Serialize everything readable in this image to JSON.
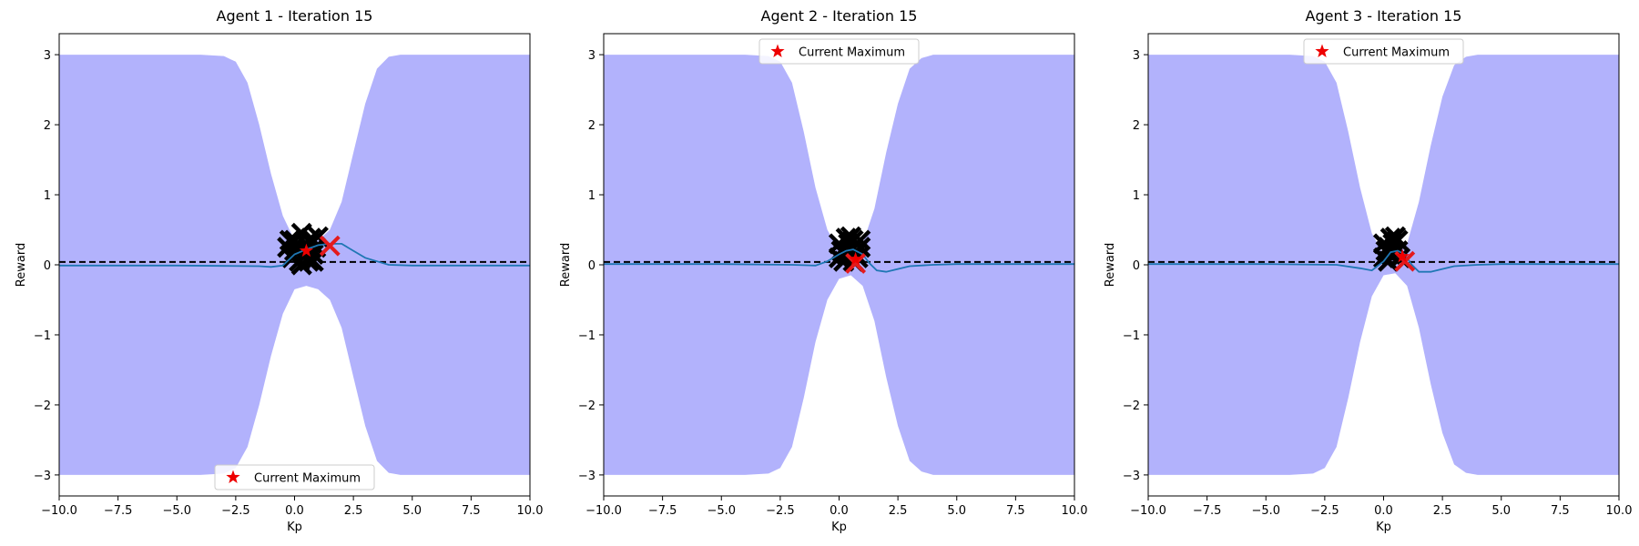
{
  "chart_data": [
    {
      "type": "line",
      "title": "Agent 1 - Iteration 15",
      "xlabel": "Kp",
      "ylabel": "Reward",
      "xlim": [
        -10,
        10
      ],
      "ylim": [
        -3.3,
        3.3
      ],
      "xticks": [
        "−10.0",
        "−7.5",
        "−5.0",
        "−2.5",
        "0.0",
        "2.5",
        "5.0",
        "7.5",
        "10.0"
      ],
      "yticks": [
        "−3",
        "−2",
        "−1",
        "0",
        "1",
        "2",
        "3"
      ],
      "grid": false,
      "legend": {
        "location": "lower center",
        "entries": [
          "Current Maximum"
        ]
      },
      "threshold": 0.04,
      "mean": {
        "x": [
          -10,
          -5,
          -3,
          -1.5,
          -1,
          -0.5,
          0,
          0.5,
          1,
          1.5,
          2,
          2.5,
          3,
          3.5,
          4,
          5,
          10
        ],
        "y": [
          -0.01,
          -0.01,
          -0.015,
          -0.02,
          -0.03,
          -0.01,
          0.15,
          0.22,
          0.28,
          0.3,
          0.3,
          0.2,
          0.1,
          0.05,
          0.0,
          -0.01,
          -0.01
        ]
      },
      "band": {
        "x": [
          -10,
          -4,
          -3,
          -2.5,
          -2,
          -1.5,
          -1,
          -0.5,
          0,
          0.5,
          1,
          1.5,
          2,
          2.5,
          3,
          3.5,
          4,
          4.5,
          5,
          10
        ],
        "upper": [
          3.0,
          3.0,
          2.98,
          2.9,
          2.6,
          2.0,
          1.3,
          0.7,
          0.35,
          0.3,
          0.35,
          0.5,
          0.9,
          1.6,
          2.3,
          2.8,
          2.97,
          3.0,
          3.0,
          3.0
        ],
        "lower": [
          -3.0,
          -3.0,
          -2.98,
          -2.9,
          -2.6,
          -2.0,
          -1.3,
          -0.7,
          -0.35,
          -0.3,
          -0.35,
          -0.5,
          -0.9,
          -1.6,
          -2.3,
          -2.8,
          -2.97,
          -3.0,
          -3.0,
          -3.0
        ]
      },
      "observations": {
        "x": [
          -0.3,
          0.0,
          0.2,
          0.5,
          0.8,
          1.0,
          -0.1,
          0.3,
          0.6,
          0.9,
          0.1,
          0.4,
          0.7,
          -0.2,
          0.5,
          0.3,
          0.0,
          0.8
        ],
        "y": [
          0.25,
          0.35,
          0.05,
          0.3,
          0.15,
          0.4,
          0.1,
          0.45,
          0.05,
          0.25,
          0.3,
          0.15,
          0.38,
          0.35,
          0.2,
          0.0,
          0.2,
          0.05
        ]
      },
      "latest": {
        "x": 1.5,
        "y": 0.27
      },
      "current_max": {
        "x": 0.5,
        "y": 0.2
      }
    },
    {
      "type": "line",
      "title": "Agent 2 - Iteration 15",
      "xlabel": "Kp",
      "ylabel": "Reward",
      "xlim": [
        -10,
        10
      ],
      "ylim": [
        -3.3,
        3.3
      ],
      "xticks": [
        "−10.0",
        "−7.5",
        "−5.0",
        "−2.5",
        "0.0",
        "2.5",
        "5.0",
        "7.5",
        "10.0"
      ],
      "yticks": [
        "−3",
        "−2",
        "−1",
        "0",
        "1",
        "2",
        "3"
      ],
      "grid": false,
      "legend": {
        "location": "upper center",
        "entries": [
          "Current Maximum"
        ]
      },
      "threshold": 0.04,
      "mean": {
        "x": [
          -10,
          -5,
          -2,
          -1,
          -0.5,
          0,
          0.3,
          0.6,
          1.0,
          1.3,
          1.6,
          2.0,
          2.5,
          3,
          4,
          5,
          10
        ],
        "y": [
          0.01,
          0.01,
          0.0,
          -0.01,
          0.05,
          0.15,
          0.2,
          0.22,
          0.15,
          0.02,
          -0.08,
          -0.1,
          -0.06,
          -0.02,
          0.0,
          0.01,
          0.01
        ]
      },
      "band": {
        "x": [
          -10,
          -4,
          -3,
          -2.5,
          -2,
          -1.5,
          -1,
          -0.5,
          0,
          0.5,
          1,
          1.5,
          2,
          2.5,
          3,
          3.5,
          4,
          4.5,
          5,
          10
        ],
        "upper": [
          3.0,
          3.0,
          2.98,
          2.9,
          2.6,
          1.9,
          1.1,
          0.5,
          0.2,
          0.15,
          0.3,
          0.8,
          1.6,
          2.3,
          2.8,
          2.95,
          3.0,
          3.0,
          3.0,
          3.0
        ],
        "lower": [
          -3.0,
          -3.0,
          -2.98,
          -2.9,
          -2.6,
          -1.9,
          -1.1,
          -0.5,
          -0.2,
          -0.15,
          -0.3,
          -0.8,
          -1.6,
          -2.3,
          -2.8,
          -2.95,
          -3.0,
          -3.0,
          -3.0,
          -3.0
        ]
      },
      "observations": {
        "x": [
          0.0,
          0.3,
          0.6,
          0.9,
          0.2,
          0.5,
          0.8,
          0.1,
          0.4,
          0.7,
          0.0,
          0.6,
          0.3,
          0.9,
          0.5
        ],
        "y": [
          0.3,
          0.15,
          0.35,
          0.25,
          0.05,
          0.4,
          0.1,
          0.2,
          0.3,
          0.15,
          0.1,
          0.05,
          0.38,
          0.35,
          0.2
        ]
      },
      "latest": {
        "x": 0.7,
        "y": 0.02
      },
      "current_max": {
        "x": 0.7,
        "y": 0.08
      }
    },
    {
      "type": "line",
      "title": "Agent 3 - Iteration 15",
      "xlabel": "Kp",
      "ylabel": "Reward",
      "xlim": [
        -10,
        10
      ],
      "ylim": [
        -3.3,
        3.3
      ],
      "xticks": [
        "−10.0",
        "−7.5",
        "−5.0",
        "−2.5",
        "0.0",
        "2.5",
        "5.0",
        "7.5",
        "10.0"
      ],
      "yticks": [
        "−3",
        "−2",
        "−1",
        "0",
        "1",
        "2",
        "3"
      ],
      "grid": false,
      "legend": {
        "location": "upper center",
        "entries": [
          "Current Maximum"
        ]
      },
      "threshold": 0.04,
      "mean": {
        "x": [
          -10,
          -5,
          -2,
          -1,
          -0.5,
          0,
          0.3,
          0.6,
          0.9,
          1.2,
          1.5,
          2.0,
          2.5,
          3,
          4,
          5,
          10
        ],
        "y": [
          0.01,
          0.01,
          0.0,
          -0.05,
          -0.08,
          0.05,
          0.18,
          0.2,
          0.15,
          0.0,
          -0.1,
          -0.1,
          -0.06,
          -0.02,
          0.0,
          0.01,
          0.01
        ]
      },
      "band": {
        "x": [
          -10,
          -4,
          -3,
          -2.5,
          -2,
          -1.5,
          -1,
          -0.5,
          0,
          0.5,
          1,
          1.5,
          2,
          2.5,
          3,
          3.5,
          4,
          4.5,
          5,
          10
        ],
        "upper": [
          3.0,
          3.0,
          2.98,
          2.9,
          2.6,
          1.9,
          1.1,
          0.45,
          0.15,
          0.12,
          0.3,
          0.9,
          1.7,
          2.4,
          2.85,
          2.97,
          3.0,
          3.0,
          3.0,
          3.0
        ],
        "lower": [
          -3.0,
          -3.0,
          -2.98,
          -2.9,
          -2.6,
          -1.9,
          -1.1,
          -0.45,
          -0.15,
          -0.12,
          -0.3,
          -0.9,
          -1.7,
          -2.4,
          -2.85,
          -2.97,
          -3.0,
          -3.0,
          -3.0,
          -3.0
        ]
      },
      "observations": {
        "x": [
          0.0,
          0.3,
          0.6,
          0.2,
          0.5,
          0.1,
          0.4,
          0.7,
          0.0,
          0.3,
          0.6,
          0.2
        ],
        "y": [
          0.3,
          0.15,
          0.35,
          0.05,
          0.4,
          0.2,
          0.3,
          0.1,
          0.1,
          0.38,
          0.2,
          0.25
        ]
      },
      "latest": {
        "x": 0.9,
        "y": 0.05
      },
      "current_max": {
        "x": 0.8,
        "y": 0.12
      }
    }
  ],
  "colors": {
    "band": "#b2b2fc",
    "mean": "#1f77b4",
    "observation": "#000000",
    "latest": "#e41a1c",
    "current_max": "#ee0000",
    "threshold": "#000000"
  },
  "icons": {
    "legend_marker": "red-star-icon",
    "observation_marker": "x-icon"
  }
}
